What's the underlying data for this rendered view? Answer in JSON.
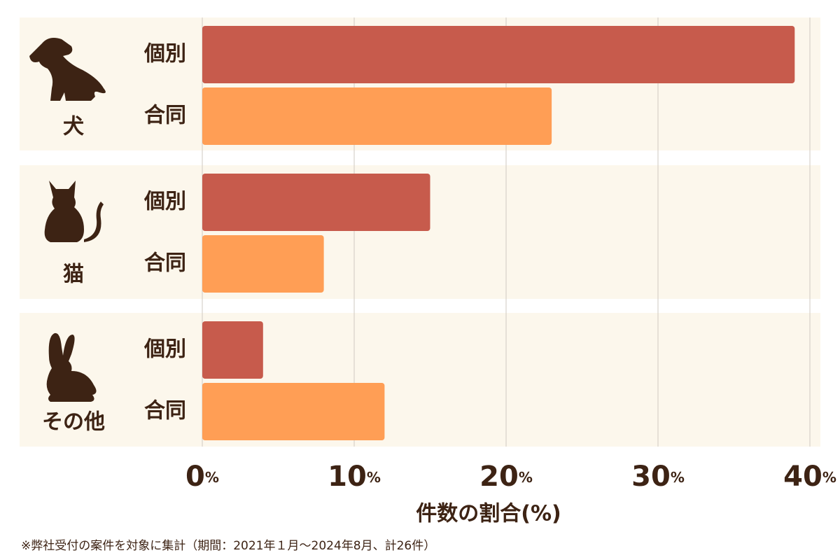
{
  "chart_data": {
    "type": "bar",
    "orientation": "horizontal",
    "categories": [
      "犬",
      "猫",
      "その他"
    ],
    "series": [
      {
        "name": "個別",
        "color": "#c75b4c",
        "values": [
          39,
          15,
          4
        ]
      },
      {
        "name": "合同",
        "color": "#ff9e55",
        "values": [
          23,
          8,
          12
        ]
      }
    ],
    "xlim": [
      0,
      40
    ],
    "xticks": [
      {
        "value": 0,
        "label": "0%"
      },
      {
        "value": 10,
        "label": "10%"
      },
      {
        "value": 20,
        "label": "20%"
      },
      {
        "value": 30,
        "label": "30%"
      },
      {
        "value": 40,
        "label": "40%"
      }
    ],
    "xlabel": "件数の割合(%)",
    "grid": true,
    "note": "※弊社受付の案件を対象に集計（期間：2021年１月～2024年8月、計26件）"
  }
}
